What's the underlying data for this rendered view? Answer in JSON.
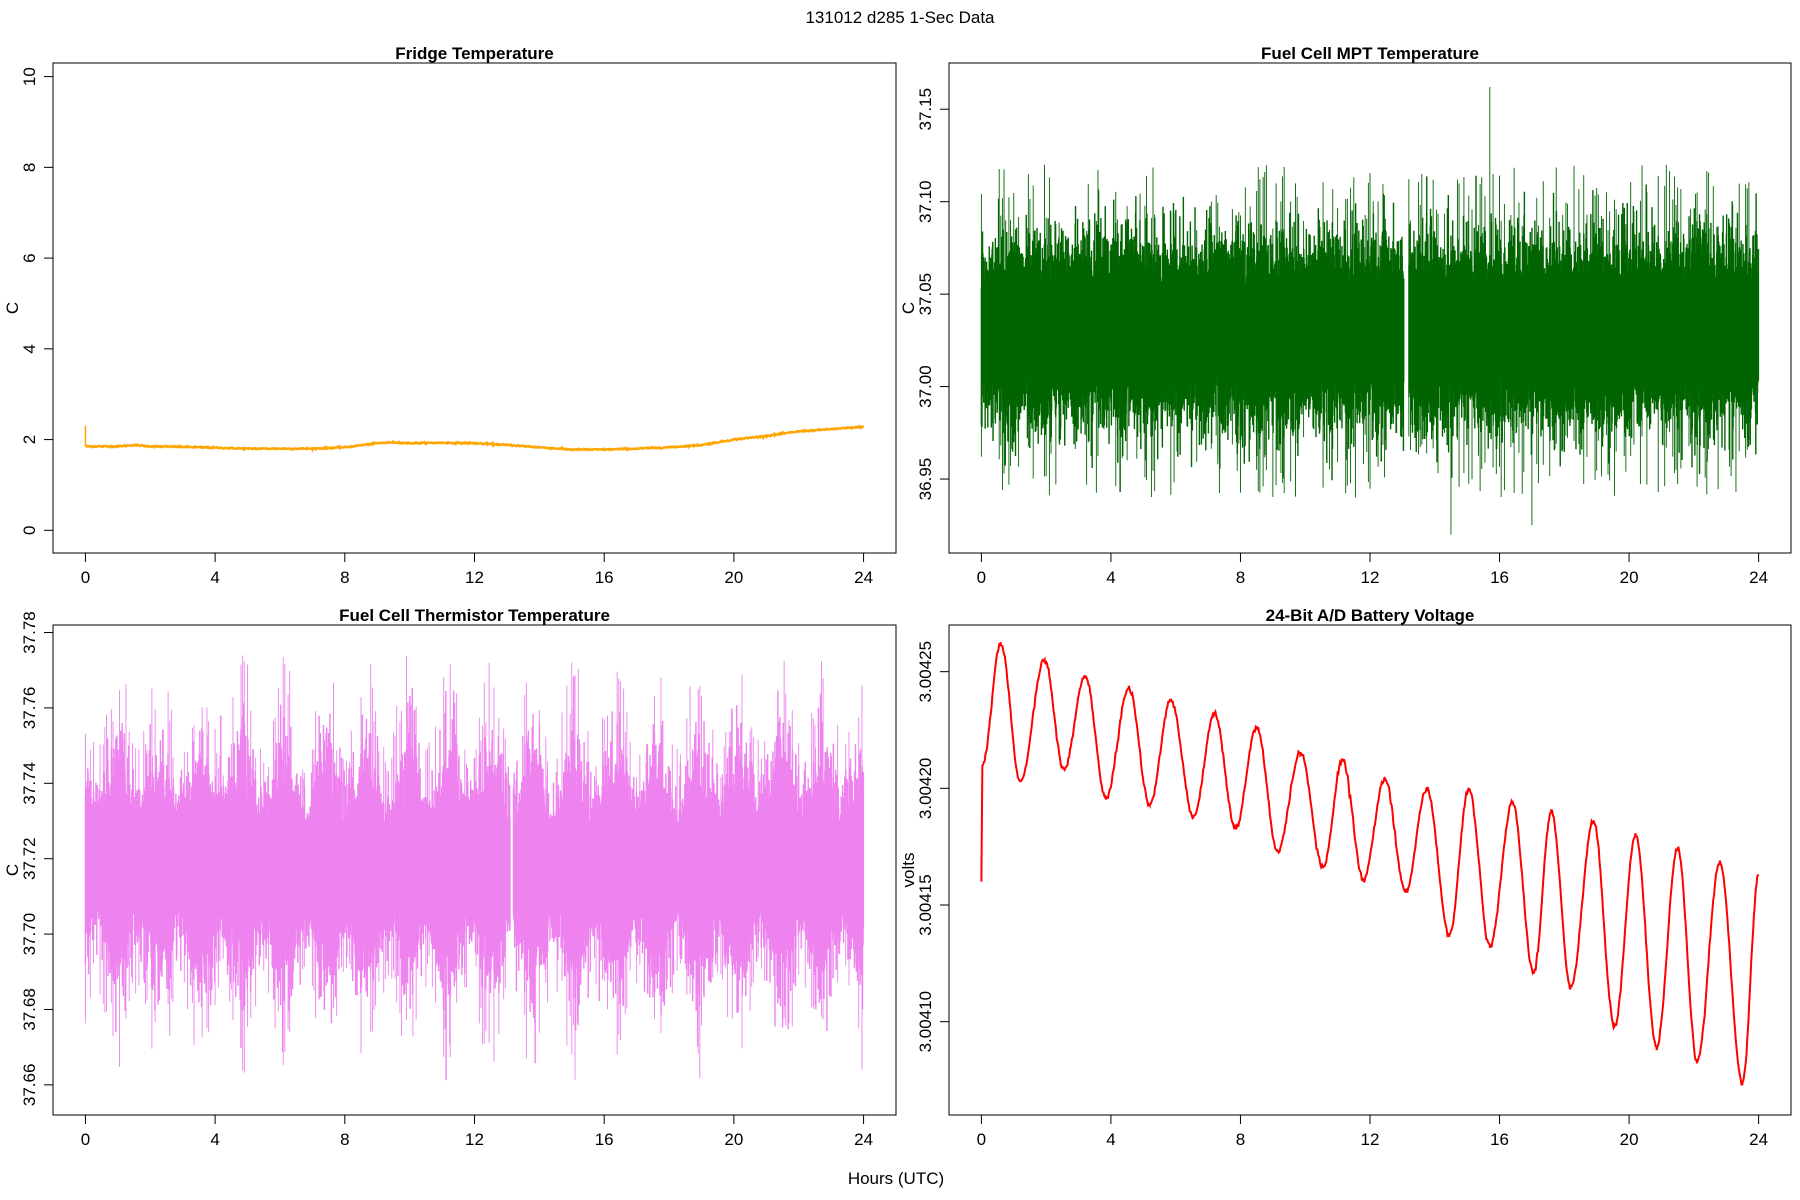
{
  "figure": {
    "title": "131012   d285   1-Sec Data",
    "xlabel": "Hours (UTC)"
  },
  "chart_data": [
    {
      "type": "line",
      "title": "Fridge Temperature",
      "ylabel": "C",
      "color": "#FFA500",
      "xlim": [
        -1,
        25
      ],
      "ylim": [
        -0.5,
        10.3
      ],
      "xticks": [
        0,
        4,
        8,
        12,
        16,
        20,
        24
      ],
      "yticks": [
        0,
        2,
        4,
        6,
        8,
        10
      ],
      "ytick_labels": [
        "0",
        "2",
        "4",
        "6",
        "8",
        "10"
      ],
      "series": [
        {
          "name": "fridge",
          "kind": "trend",
          "x": [
            0,
            0.05,
            1,
            1.5,
            2,
            3,
            4,
            5,
            6,
            7,
            8,
            9,
            9.5,
            10,
            11,
            12,
            13,
            14,
            15,
            16,
            17,
            18,
            19,
            20,
            21,
            22,
            23,
            24
          ],
          "values": [
            1.85,
            1.85,
            1.85,
            1.88,
            1.85,
            1.84,
            1.82,
            1.8,
            1.8,
            1.8,
            1.83,
            1.92,
            1.94,
            1.92,
            1.93,
            1.92,
            1.88,
            1.83,
            1.78,
            1.78,
            1.8,
            1.83,
            1.88,
            2.0,
            2.08,
            2.18,
            2.23,
            2.28
          ],
          "noise": 0.015,
          "spike": {
            "x": 0,
            "from": 1.85,
            "to": 2.3
          }
        }
      ]
    },
    {
      "type": "line",
      "title": "Fuel Cell MPT Temperature",
      "ylabel": "C",
      "color": "#006400",
      "xlim": [
        -1,
        25
      ],
      "ylim": [
        36.91,
        37.175
      ],
      "xticks": [
        0,
        4,
        8,
        12,
        16,
        20,
        24
      ],
      "yticks": [
        36.95,
        37.0,
        37.05,
        37.1,
        37.15
      ],
      "ytick_labels": [
        "36.95",
        "37.00",
        "37.05",
        "37.10",
        "37.15"
      ],
      "series": [
        {
          "name": "mpt",
          "kind": "noise",
          "center": 37.03,
          "band": 0.042,
          "extremes": [
            36.94,
            37.12
          ],
          "gap": [
            13.05,
            13.2
          ],
          "peaks": [
            {
              "x": 15.7,
              "value": 37.162
            },
            {
              "x": 14.5,
              "value": 36.92
            },
            {
              "x": 17.0,
              "value": 36.925
            }
          ]
        }
      ]
    },
    {
      "type": "line",
      "title": "Fuel Cell Thermistor Temperature",
      "ylabel": "C",
      "color": "#EE82EE",
      "xlim": [
        -1,
        25
      ],
      "ylim": [
        37.652,
        37.782
      ],
      "xticks": [
        0,
        4,
        8,
        12,
        16,
        20,
        24
      ],
      "yticks": [
        37.66,
        37.68,
        37.7,
        37.72,
        37.74,
        37.76,
        37.78
      ],
      "ytick_labels": [
        "37.66",
        "37.68",
        "37.70",
        "37.72",
        "37.74",
        "37.76",
        "37.78"
      ],
      "series": [
        {
          "name": "thermistor",
          "kind": "modulated-noise",
          "center": 37.718,
          "band_min": 0.016,
          "band_max": 0.028,
          "period_hours": 1.28,
          "extremes": [
            37.658,
            37.778
          ],
          "gap": [
            13.1,
            13.2
          ]
        }
      ]
    },
    {
      "type": "line",
      "title": "24-Bit A/D Battery Voltage",
      "ylabel": "volts",
      "color": "#FF0000",
      "xlim": [
        -1,
        25
      ],
      "ylim": [
        3.00406,
        3.00427
      ],
      "xticks": [
        0,
        4,
        8,
        12,
        16,
        20,
        24
      ],
      "yticks": [
        3.0041,
        3.00415,
        3.0042,
        3.00425
      ],
      "ytick_labels": [
        "3.00410",
        "3.00415",
        "3.00420",
        "3.00425"
      ],
      "series": [
        {
          "name": "battery",
          "kind": "oscillation",
          "start": [
            0,
            3.00416
          ],
          "x": [
            0.03,
            0.6,
            1.2,
            1.95,
            2.55,
            3.2,
            3.85,
            4.55,
            5.2,
            5.85,
            6.55,
            7.2,
            7.85,
            8.5,
            9.15,
            9.85,
            10.55,
            11.15,
            11.8,
            12.45,
            13.1,
            13.75,
            14.45,
            15.05,
            15.7,
            16.4,
            17.05,
            17.6,
            18.2,
            18.9,
            19.55,
            20.2,
            20.85,
            21.5,
            22.1,
            22.8,
            23.5,
            24
          ],
          "values": [
            3.00421,
            3.004262,
            3.004203,
            3.004255,
            3.004208,
            3.004248,
            3.004196,
            3.004243,
            3.004193,
            3.004238,
            3.004188,
            3.004232,
            3.004183,
            3.004226,
            3.004173,
            3.004215,
            3.004166,
            3.004212,
            3.004161,
            3.004204,
            3.004156,
            3.0042,
            3.004137,
            3.0042,
            3.004132,
            3.004194,
            3.004121,
            3.00419,
            3.004115,
            3.004186,
            3.004098,
            3.00418,
            3.004089,
            3.004174,
            3.004083,
            3.004168,
            3.004074,
            3.004163
          ]
        }
      ]
    }
  ]
}
